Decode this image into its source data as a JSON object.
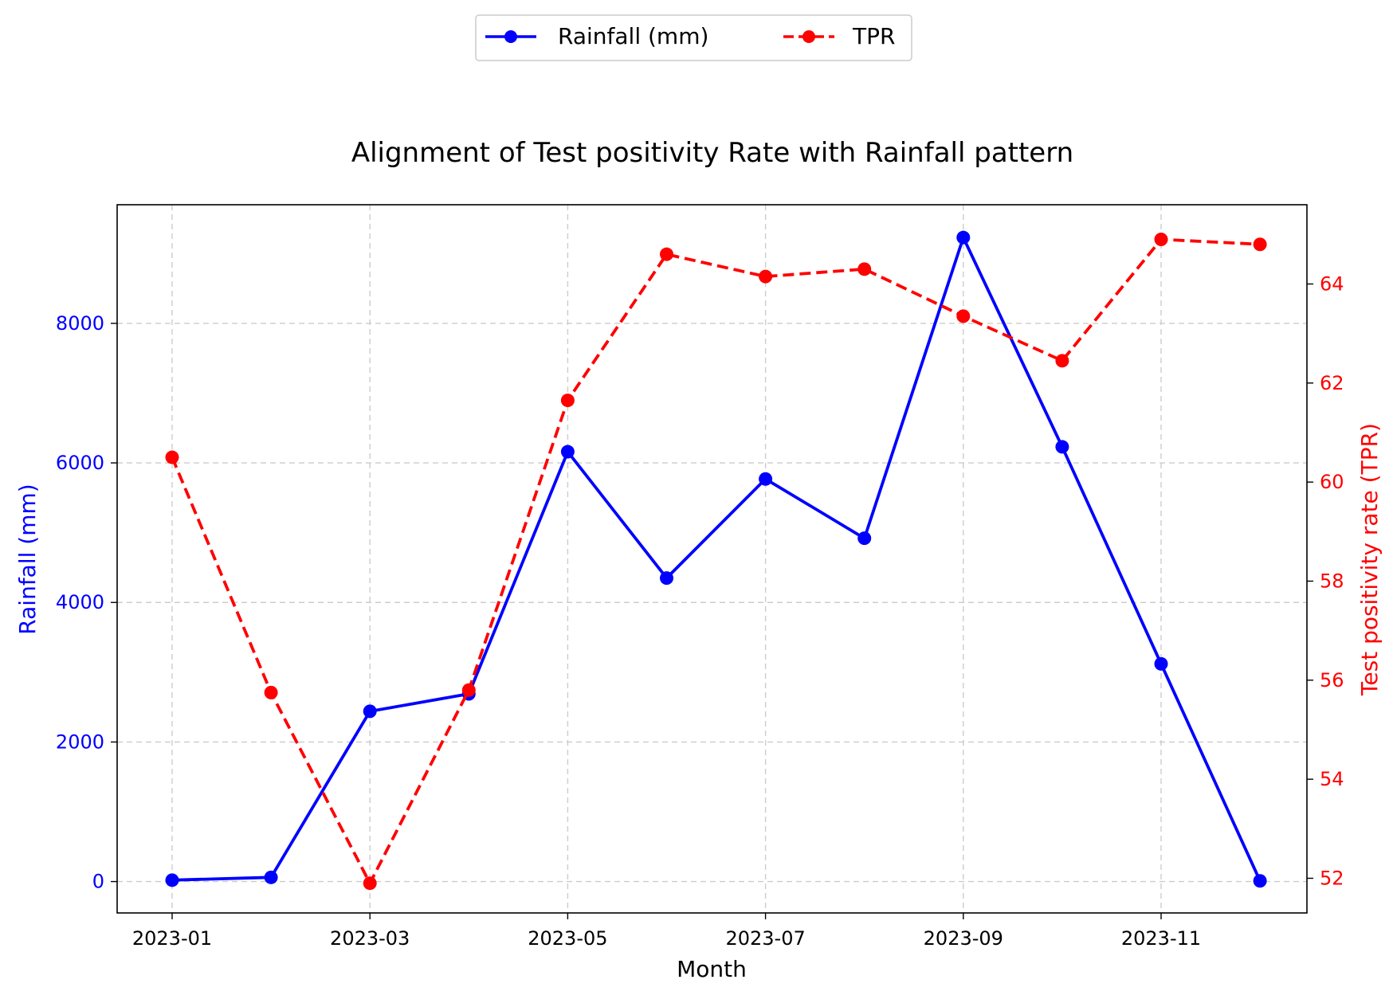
{
  "colors": {
    "rainfall": "#0000ff",
    "tpr": "#ff0000",
    "grid": "#cccccc",
    "axis": "#000000",
    "text": "#000000"
  },
  "chart_data": {
    "type": "line",
    "title": "Alignment of Test positivity Rate with Rainfall pattern",
    "xlabel": "Month",
    "ylabel_left": "Rainfall (mm)",
    "ylabel_right": "Test positivity rate (TPR)",
    "x": [
      "2023-01",
      "2023-02",
      "2023-03",
      "2023-04",
      "2023-05",
      "2023-06",
      "2023-07",
      "2023-08",
      "2023-09",
      "2023-10",
      "2023-11",
      "2023-12"
    ],
    "x_tick_labels": [
      "2023-01",
      "2023-03",
      "2023-05",
      "2023-07",
      "2023-09",
      "2023-11"
    ],
    "ylim_left": [
      -450,
      9700
    ],
    "ylim_right": [
      51.3,
      65.6
    ],
    "yticks_left": [
      0,
      2000,
      4000,
      6000,
      8000
    ],
    "yticks_right": [
      52,
      54,
      56,
      58,
      60,
      62,
      64
    ],
    "grid": true,
    "legend_position": "top-center",
    "series": [
      {
        "name": "Rainfall (mm)",
        "axis": "left",
        "style": "solid",
        "values": [
          20,
          60,
          2440,
          2690,
          6160,
          4350,
          5770,
          4920,
          9230,
          6230,
          3120,
          10
        ]
      },
      {
        "name": "TPR",
        "axis": "right",
        "style": "dashed",
        "values": [
          60.5,
          55.75,
          51.9,
          55.8,
          61.65,
          64.6,
          64.15,
          64.3,
          63.35,
          62.45,
          64.9,
          64.8
        ]
      }
    ]
  }
}
